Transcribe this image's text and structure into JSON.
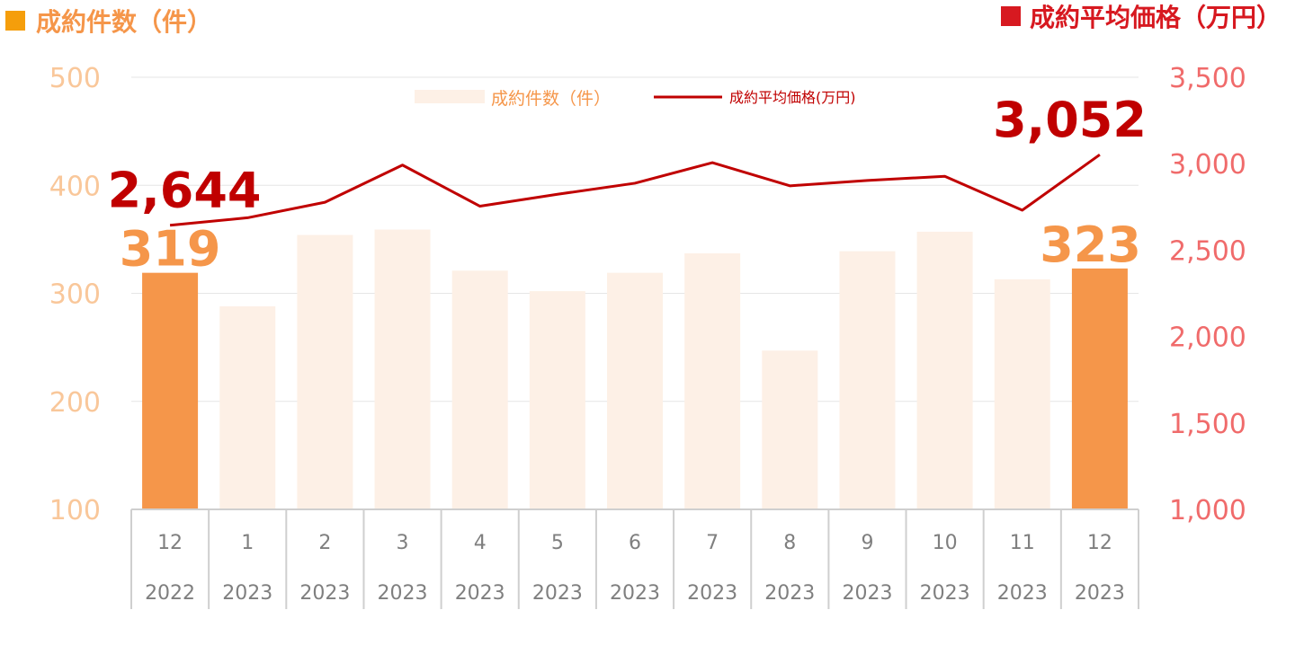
{
  "header": {
    "left_title": "成約件数（件）",
    "right_title": "成約平均価格（万円）",
    "left_marker_color": "#F59E0B",
    "right_marker_color": "#D71920"
  },
  "legend": {
    "bar_label": "成約件数（件）",
    "line_label": "成約平均価格(万円)"
  },
  "chart_data": {
    "type": "bar",
    "categories": [
      {
        "month": "12",
        "year": "2022"
      },
      {
        "month": "1",
        "year": "2023"
      },
      {
        "month": "2",
        "year": "2023"
      },
      {
        "month": "3",
        "year": "2023"
      },
      {
        "month": "4",
        "year": "2023"
      },
      {
        "month": "5",
        "year": "2023"
      },
      {
        "month": "6",
        "year": "2023"
      },
      {
        "month": "7",
        "year": "2023"
      },
      {
        "month": "8",
        "year": "2023"
      },
      {
        "month": "9",
        "year": "2023"
      },
      {
        "month": "10",
        "year": "2023"
      },
      {
        "month": "11",
        "year": "2023"
      },
      {
        "month": "12",
        "year": "2023"
      }
    ],
    "series": [
      {
        "name": "成約件数（件）",
        "type": "bar",
        "axis": "left",
        "values": [
          319,
          288,
          354,
          359,
          321,
          302,
          319,
          337,
          247,
          339,
          357,
          313,
          323
        ],
        "highlight_indices": [
          0,
          12
        ],
        "highlight_color": "#F5964A",
        "color": "#FDF0E6"
      },
      {
        "name": "成約平均価格(万円)",
        "type": "line",
        "axis": "right",
        "values": [
          2644,
          2687,
          2777,
          2992,
          2754,
          2823,
          2887,
          3006,
          2872,
          2903,
          2927,
          2731,
          3052
        ],
        "color": "#C00000"
      }
    ],
    "data_labels": [
      {
        "text": "319",
        "series": "bar",
        "index": 0
      },
      {
        "text": "323",
        "series": "bar",
        "index": 12
      },
      {
        "text": "2,644",
        "series": "line",
        "index": 0
      },
      {
        "text": "3,052",
        "series": "line",
        "index": 12
      }
    ],
    "left_axis": {
      "ylim": [
        100,
        500
      ],
      "ticks": [
        "500",
        "400",
        "300",
        "200",
        "100"
      ],
      "color": "#F9C79A"
    },
    "right_axis": {
      "ylim": [
        1000,
        3500
      ],
      "ticks": [
        "3,500",
        "3,000",
        "2,500",
        "2,000",
        "1,500",
        "1,000"
      ],
      "color": "#F06B6B"
    },
    "grid": true,
    "legend_position": "top-center",
    "data_label_colors": {
      "bar": "#F5964A",
      "line": "#C00000"
    }
  }
}
